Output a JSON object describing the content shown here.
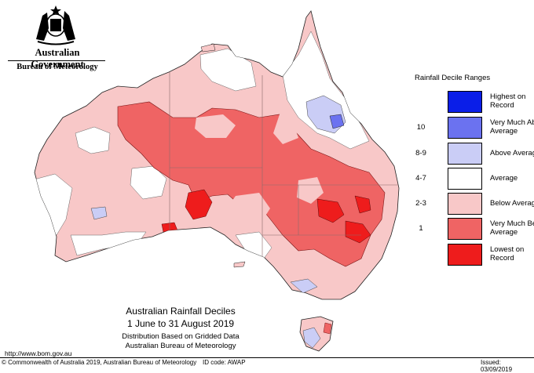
{
  "header": {
    "government": "Australian Government",
    "bureau": "Bureau of Meteorology",
    "crest_icon": "commonwealth-coat-of-arms"
  },
  "legend": {
    "title": "Rainfall Decile Ranges",
    "items": [
      {
        "range": "",
        "label": "Highest on Record",
        "color": "#0a1ee8"
      },
      {
        "range": "10",
        "label": "Very Much Above Average",
        "color": "#6b72f0"
      },
      {
        "range": "8-9",
        "label": "Above Average",
        "color": "#cacdf6"
      },
      {
        "range": "4-7",
        "label": "Average",
        "color": "#ffffff"
      },
      {
        "range": "2-3",
        "label": "Below Average",
        "color": "#f8c8c8"
      },
      {
        "range": "1",
        "label": "Very Much Below Average",
        "color": "#ef6464"
      },
      {
        "range": "",
        "label": "Lowest on Record",
        "color": "#ee1c1c"
      }
    ]
  },
  "caption": {
    "title": "Australian Rainfall Deciles",
    "period": "1 June to 31 August 2019",
    "method": "Distribution Based on Gridded Data",
    "source": "Australian Bureau of Meteorology"
  },
  "footer": {
    "url": "http://www.bom.gov.au",
    "copyright": "© Commonwealth of Australia 2019, Australian Bureau of Meteorology",
    "id_code": "ID code: AWAP",
    "issued": "Issued: 03/09/2019"
  }
}
